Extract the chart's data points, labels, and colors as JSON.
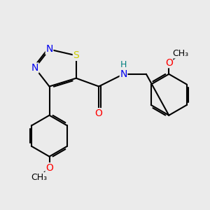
{
  "bg_color": "#ebebeb",
  "atom_colors": {
    "N": "#0000ee",
    "S": "#cccc00",
    "O": "#ff0000",
    "C": "#000000",
    "H": "#008080"
  }
}
